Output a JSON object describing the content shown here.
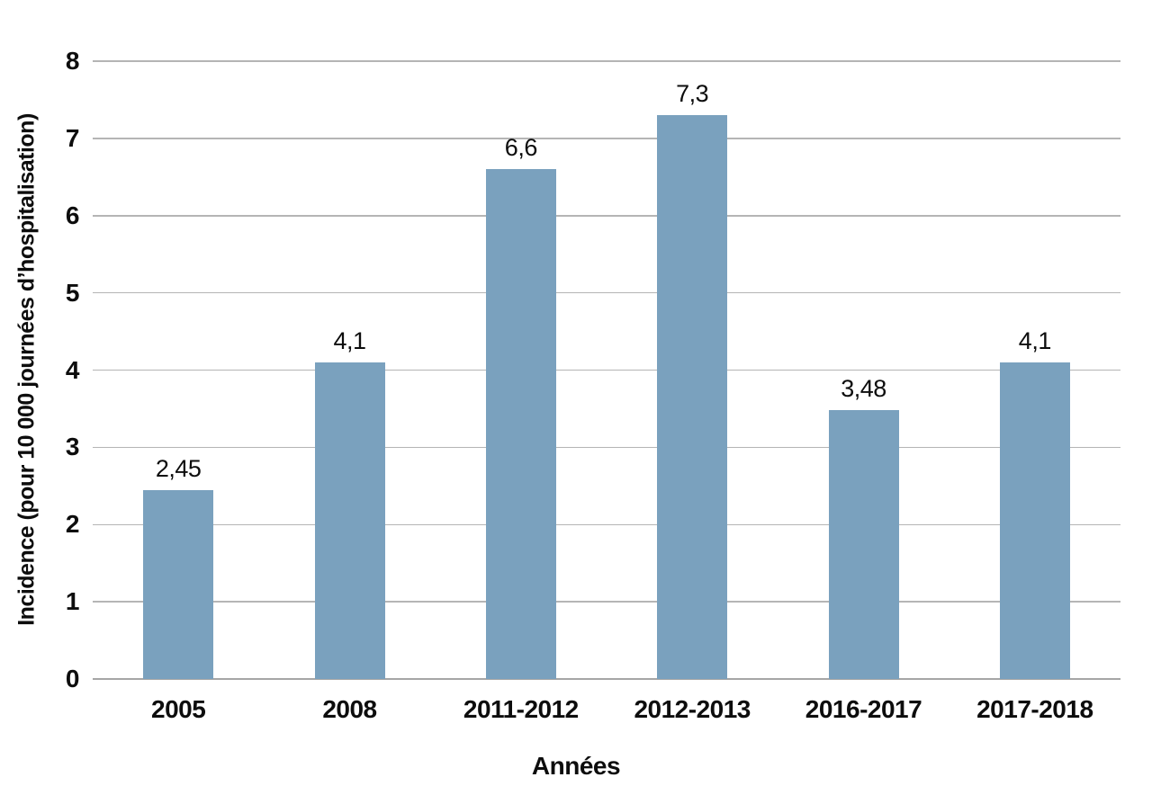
{
  "chart_data": {
    "type": "bar",
    "xlabel": "Années",
    "ylabel": "Incidence (pour 10 000 journées d’hospitalisation)",
    "categories": [
      "2005",
      "2008",
      "2011-2012",
      "2012-2013",
      "2016-2017",
      "2017-2018"
    ],
    "values": [
      2.45,
      4.1,
      6.6,
      7.3,
      3.48,
      4.1
    ],
    "value_labels": [
      "2,45",
      "4,1",
      "6,6",
      "7,3",
      "3,48",
      "4,1"
    ],
    "ylim": [
      0,
      8
    ],
    "ytick_step": 1,
    "ytick_labels": [
      "0",
      "1",
      "2",
      "3",
      "4",
      "5",
      "6",
      "7",
      "8"
    ],
    "grid": true,
    "legend_position": "none",
    "bar_color": "#7aa1be",
    "gridline_color": "#b5b5b5",
    "axis_line_color": "#a6a6a6",
    "text_color": "#0d0d0d"
  }
}
